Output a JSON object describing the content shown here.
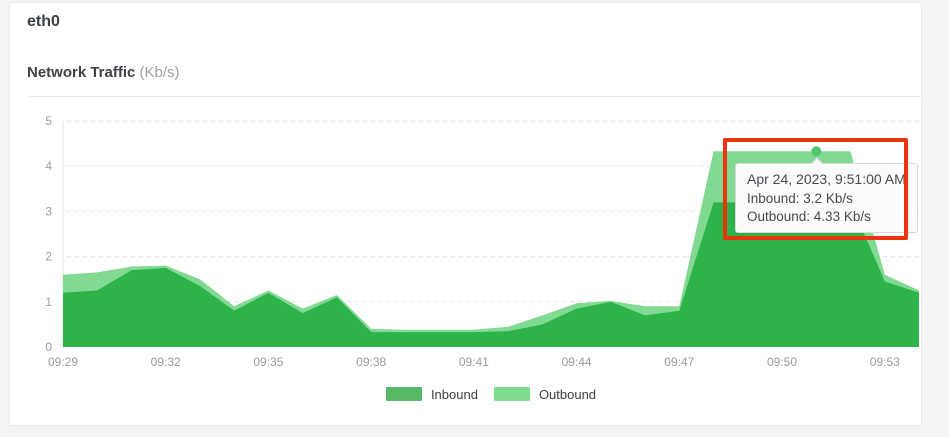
{
  "page": {
    "background": "#f3f4f5",
    "card_background": "#ffffff"
  },
  "header": {
    "interface_name": "eth0",
    "chart_title": "Network Traffic",
    "chart_title_unit": "(Kb/s)"
  },
  "chart_data": {
    "type": "area",
    "title": "Network Traffic (Kb/s)",
    "categories": [
      "09:29",
      "09:30",
      "09:31",
      "09:32",
      "09:33",
      "09:34",
      "09:35",
      "09:36",
      "09:37",
      "09:38",
      "09:39",
      "09:40",
      "09:41",
      "09:42",
      "09:43",
      "09:44",
      "09:45",
      "09:46",
      "09:47",
      "09:48",
      "09:49",
      "09:50",
      "09:51",
      "09:52",
      "09:53",
      "09:54"
    ],
    "series": [
      {
        "name": "Inbound",
        "color": "#2eb34b",
        "legend_color": "#56ba67",
        "values": [
          1.2,
          1.25,
          1.7,
          1.75,
          1.35,
          0.8,
          1.2,
          0.75,
          1.1,
          0.33,
          0.33,
          0.33,
          0.33,
          0.35,
          0.5,
          0.85,
          1.0,
          0.7,
          0.8,
          3.2,
          3.2,
          3.2,
          3.2,
          3.2,
          1.45,
          1.2
        ]
      },
      {
        "name": "Outbound",
        "color": "#82d992",
        "legend_color": "#7edc8e",
        "values": [
          1.6,
          1.65,
          1.78,
          1.8,
          1.5,
          0.9,
          1.25,
          0.85,
          1.15,
          0.4,
          0.38,
          0.38,
          0.38,
          0.45,
          0.7,
          0.97,
          1.02,
          0.9,
          0.9,
          4.33,
          4.33,
          4.33,
          4.33,
          4.33,
          1.6,
          1.25
        ]
      }
    ],
    "ylim": [
      0,
      5
    ],
    "y_ticks": [
      0,
      1,
      2,
      3,
      4,
      5
    ],
    "x_tick_labels": [
      "09:29",
      "09:32",
      "09:35",
      "09:38",
      "09:41",
      "09:44",
      "09:47",
      "09:50",
      "09:53"
    ],
    "x_tick_every": 3,
    "grid": "dashed-horizontal",
    "grid_color": "#e2e2e2",
    "axis_color": "#e3e3e3",
    "legend_position": "bottom",
    "marker": {
      "category": "09:51",
      "index": 22,
      "series": "Outbound",
      "value": 4.33,
      "color": "#4ec86a"
    }
  },
  "tooltip": {
    "title": "Apr 24, 2023, 9:51:00 AM",
    "inbound_line": "Inbound: 3.2 Kb/s",
    "outbound_line": "Outbound: 4.33 Kb/s"
  },
  "annotation": {
    "color": "#e8350f"
  }
}
